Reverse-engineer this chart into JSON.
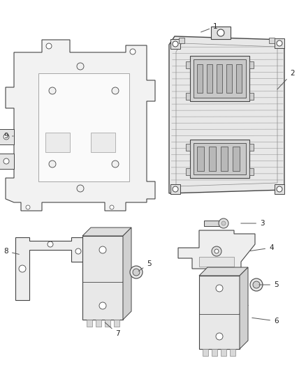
{
  "background_color": "#ffffff",
  "line_color": "#444444",
  "light_fill": "#f0f0f0",
  "mid_fill": "#e0e0e0",
  "dark_fill": "#c8c8c8",
  "figure_width": 4.38,
  "figure_height": 5.33,
  "dpi": 100,
  "label_fontsize": 7.5,
  "label_color": "#222222"
}
